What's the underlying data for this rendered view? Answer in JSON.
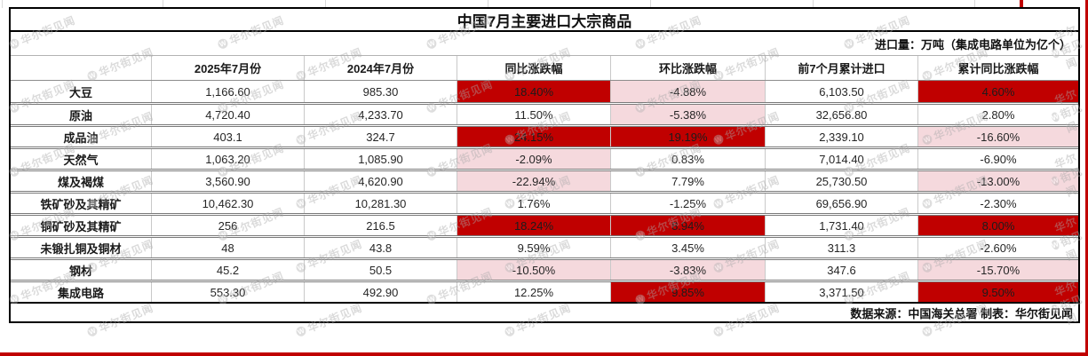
{
  "title": "中国7月主要进口大宗商品",
  "unit_note": "进口量：万吨（集成电路单位为亿个）",
  "footer_note": "数据来源：中国海关总署 制表：华尔街见闻",
  "watermark": {
    "logo_letter": "W",
    "text": "华尔街见闻"
  },
  "colors": {
    "highlight_strong": "#c00000",
    "highlight_light": "#f5d9dd",
    "frame_red": "#c00000"
  },
  "chart_data": {
    "type": "table",
    "columns": [
      "",
      "2025年7月份",
      "2024年7月份",
      "同比涨跌幅",
      "环比涨跌幅",
      "前7个月累计进口",
      "累计同比涨跌幅"
    ],
    "rows": [
      {
        "name": "大豆",
        "jul_2025": "1,166.60",
        "jul_2024": "985.30",
        "yoy": "18.40%",
        "yoy_hl": "strong",
        "mom": "-4.88%",
        "mom_hl": "light",
        "cum_7m": "6,103.50",
        "cum_yoy": "4.60%",
        "cum_yoy_hl": "strong"
      },
      {
        "name": "原油",
        "jul_2025": "4,720.40",
        "jul_2024": "4,233.70",
        "yoy": "11.50%",
        "yoy_hl": "none",
        "mom": "-5.38%",
        "mom_hl": "light",
        "cum_7m": "32,656.80",
        "cum_yoy": "2.80%",
        "cum_yoy_hl": "none"
      },
      {
        "name": "成品油",
        "jul_2025": "403.1",
        "jul_2024": "324.7",
        "yoy": "24.15%",
        "yoy_hl": "strong",
        "mom": "19.19%",
        "mom_hl": "strong",
        "cum_7m": "2,339.10",
        "cum_yoy": "-16.60%",
        "cum_yoy_hl": "light"
      },
      {
        "name": "天然气",
        "jul_2025": "1,063.20",
        "jul_2024": "1,085.90",
        "yoy": "-2.09%",
        "yoy_hl": "light",
        "mom": "0.83%",
        "mom_hl": "none",
        "cum_7m": "7,014.40",
        "cum_yoy": "-6.90%",
        "cum_yoy_hl": "none"
      },
      {
        "name": "煤及褐煤",
        "jul_2025": "3,560.90",
        "jul_2024": "4,620.90",
        "yoy": "-22.94%",
        "yoy_hl": "light",
        "mom": "7.79%",
        "mom_hl": "none",
        "cum_7m": "25,730.50",
        "cum_yoy": "-13.00%",
        "cum_yoy_hl": "light"
      },
      {
        "name": "铁矿砂及其精矿",
        "jul_2025": "10,462.30",
        "jul_2024": "10,281.30",
        "yoy": "1.76%",
        "yoy_hl": "none",
        "mom": "-1.25%",
        "mom_hl": "none",
        "cum_7m": "69,656.90",
        "cum_yoy": "-2.30%",
        "cum_yoy_hl": "none"
      },
      {
        "name": "铜矿砂及其精矿",
        "jul_2025": "256",
        "jul_2024": "216.5",
        "yoy": "18.24%",
        "yoy_hl": "strong",
        "mom": "8.94%",
        "mom_hl": "strong",
        "cum_7m": "1,731.40",
        "cum_yoy": "8.00%",
        "cum_yoy_hl": "strong"
      },
      {
        "name": "未锻扎铜及铜材",
        "jul_2025": "48",
        "jul_2024": "43.8",
        "yoy": "9.59%",
        "yoy_hl": "none",
        "mom": "3.45%",
        "mom_hl": "none",
        "cum_7m": "311.3",
        "cum_yoy": "-2.60%",
        "cum_yoy_hl": "none"
      },
      {
        "name": "钢材",
        "jul_2025": "45.2",
        "jul_2024": "50.5",
        "yoy": "-10.50%",
        "yoy_hl": "light",
        "mom": "-3.83%",
        "mom_hl": "light",
        "cum_7m": "347.6",
        "cum_yoy": "-15.70%",
        "cum_yoy_hl": "light"
      },
      {
        "name": "集成电路",
        "jul_2025": "553.30",
        "jul_2024": "492.90",
        "yoy": "12.25%",
        "yoy_hl": "none",
        "mom": "9.85%",
        "mom_hl": "strong",
        "cum_7m": "3,371.50",
        "cum_yoy": "9.50%",
        "cum_yoy_hl": "strong"
      }
    ]
  }
}
